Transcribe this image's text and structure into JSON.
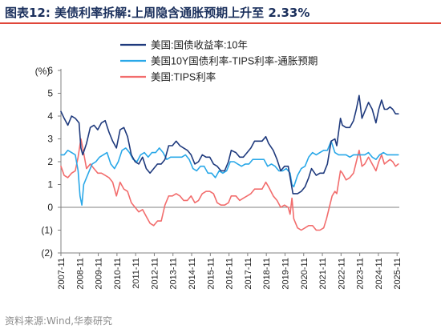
{
  "title": "图表12:   美债利率拆解:上周隐含通胀预期上升至 2.33%",
  "source": "资料来源:Wind,华泰研究",
  "chart_data": {
    "type": "line",
    "ylabel": "(%)",
    "ylim": [
      -2,
      6
    ],
    "yticks": [
      -2,
      -1,
      0,
      1,
      2,
      3,
      4,
      5,
      6
    ],
    "ytick_labels": [
      "(2)",
      "(1)",
      "0",
      "1",
      "2",
      "3",
      "4",
      "5",
      "6"
    ],
    "xlim": [
      2007.83,
      2025.95
    ],
    "xticks": [
      2007.83,
      2008.83,
      2009.83,
      2010.83,
      2011.83,
      2012.83,
      2013.83,
      2014.83,
      2015.83,
      2016.83,
      2017.83,
      2018.83,
      2019.83,
      2020.83,
      2021.83,
      2022.83,
      2023.83,
      2024.83,
      2025.83
    ],
    "xtick_labels": [
      "2007-11",
      "2008-11",
      "2009-11",
      "2010-11",
      "2011-11",
      "2012-11",
      "2013-11",
      "2014-11",
      "2015-11",
      "2016-11",
      "2017-11",
      "2018-11",
      "2019-11",
      "2020-11",
      "2021-11",
      "2022-11",
      "2023-11",
      "2024-11",
      "2025-11"
    ],
    "legend_position": "top",
    "series": [
      {
        "name": "美国:国债收益率:10年",
        "color": "#1f3a7d",
        "points": [
          [
            2007.83,
            4.2
          ],
          [
            2008.0,
            3.9
          ],
          [
            2008.2,
            3.6
          ],
          [
            2008.4,
            4.0
          ],
          [
            2008.6,
            3.9
          ],
          [
            2008.8,
            3.7
          ],
          [
            2008.9,
            2.6
          ],
          [
            2009.0,
            2.3
          ],
          [
            2009.2,
            2.8
          ],
          [
            2009.4,
            3.5
          ],
          [
            2009.6,
            3.6
          ],
          [
            2009.8,
            3.4
          ],
          [
            2010.0,
            3.7
          ],
          [
            2010.2,
            3.8
          ],
          [
            2010.4,
            3.3
          ],
          [
            2010.6,
            2.9
          ],
          [
            2010.8,
            2.6
          ],
          [
            2011.0,
            3.4
          ],
          [
            2011.2,
            3.5
          ],
          [
            2011.4,
            3.1
          ],
          [
            2011.6,
            2.3
          ],
          [
            2011.8,
            2.0
          ],
          [
            2012.0,
            1.9
          ],
          [
            2012.2,
            2.2
          ],
          [
            2012.4,
            1.7
          ],
          [
            2012.6,
            1.5
          ],
          [
            2012.8,
            1.7
          ],
          [
            2013.0,
            1.9
          ],
          [
            2013.2,
            1.9
          ],
          [
            2013.4,
            2.1
          ],
          [
            2013.6,
            2.7
          ],
          [
            2013.8,
            2.7
          ],
          [
            2014.0,
            2.9
          ],
          [
            2014.2,
            2.7
          ],
          [
            2014.4,
            2.6
          ],
          [
            2014.6,
            2.5
          ],
          [
            2014.8,
            2.3
          ],
          [
            2015.0,
            1.9
          ],
          [
            2015.2,
            2.0
          ],
          [
            2015.4,
            2.3
          ],
          [
            2015.6,
            2.2
          ],
          [
            2015.8,
            2.2
          ],
          [
            2016.0,
            1.9
          ],
          [
            2016.2,
            1.8
          ],
          [
            2016.4,
            1.6
          ],
          [
            2016.6,
            1.6
          ],
          [
            2016.8,
            2.0
          ],
          [
            2016.95,
            2.5
          ],
          [
            2017.2,
            2.4
          ],
          [
            2017.4,
            2.2
          ],
          [
            2017.6,
            2.2
          ],
          [
            2017.8,
            2.4
          ],
          [
            2018.0,
            2.6
          ],
          [
            2018.2,
            2.9
          ],
          [
            2018.4,
            2.9
          ],
          [
            2018.6,
            2.9
          ],
          [
            2018.8,
            3.1
          ],
          [
            2018.95,
            2.8
          ],
          [
            2019.2,
            2.5
          ],
          [
            2019.4,
            2.1
          ],
          [
            2019.6,
            1.6
          ],
          [
            2019.8,
            1.8
          ],
          [
            2020.0,
            1.8
          ],
          [
            2020.15,
            1.1
          ],
          [
            2020.25,
            0.6
          ],
          [
            2020.5,
            0.6
          ],
          [
            2020.7,
            0.7
          ],
          [
            2020.9,
            0.9
          ],
          [
            2021.1,
            1.3
          ],
          [
            2021.25,
            1.7
          ],
          [
            2021.5,
            1.4
          ],
          [
            2021.7,
            1.5
          ],
          [
            2021.9,
            1.5
          ],
          [
            2022.1,
            1.9
          ],
          [
            2022.3,
            2.9
          ],
          [
            2022.5,
            3.0
          ],
          [
            2022.6,
            2.7
          ],
          [
            2022.8,
            3.9
          ],
          [
            2022.9,
            3.6
          ],
          [
            2023.1,
            3.5
          ],
          [
            2023.3,
            3.5
          ],
          [
            2023.5,
            3.8
          ],
          [
            2023.65,
            4.3
          ],
          [
            2023.8,
            4.9
          ],
          [
            2023.95,
            3.9
          ],
          [
            2024.1,
            4.2
          ],
          [
            2024.3,
            4.6
          ],
          [
            2024.5,
            4.3
          ],
          [
            2024.7,
            3.7
          ],
          [
            2024.85,
            4.3
          ],
          [
            2025.0,
            4.7
          ],
          [
            2025.15,
            4.3
          ],
          [
            2025.3,
            4.3
          ],
          [
            2025.45,
            4.4
          ],
          [
            2025.6,
            4.3
          ],
          [
            2025.75,
            4.1
          ],
          [
            2025.9,
            4.1
          ]
        ]
      },
      {
        "name": "美国10Y国债利率-TIPS利率-通胀预期",
        "color": "#2aa8e8",
        "points": [
          [
            2007.83,
            2.3
          ],
          [
            2008.0,
            2.3
          ],
          [
            2008.2,
            2.5
          ],
          [
            2008.4,
            2.4
          ],
          [
            2008.6,
            2.3
          ],
          [
            2008.75,
            1.6
          ],
          [
            2008.85,
            0.5
          ],
          [
            2008.95,
            0.1
          ],
          [
            2009.05,
            1.0
          ],
          [
            2009.3,
            1.5
          ],
          [
            2009.5,
            1.9
          ],
          [
            2009.7,
            2.0
          ],
          [
            2009.9,
            2.2
          ],
          [
            2010.1,
            2.3
          ],
          [
            2010.3,
            2.4
          ],
          [
            2010.5,
            1.9
          ],
          [
            2010.7,
            1.7
          ],
          [
            2010.9,
            2.0
          ],
          [
            2011.1,
            2.5
          ],
          [
            2011.3,
            2.6
          ],
          [
            2011.5,
            2.4
          ],
          [
            2011.7,
            2.1
          ],
          [
            2011.9,
            2.0
          ],
          [
            2012.1,
            2.3
          ],
          [
            2012.3,
            2.4
          ],
          [
            2012.5,
            2.2
          ],
          [
            2012.7,
            2.4
          ],
          [
            2012.9,
            2.4
          ],
          [
            2013.1,
            2.6
          ],
          [
            2013.3,
            2.4
          ],
          [
            2013.5,
            2.1
          ],
          [
            2013.7,
            2.2
          ],
          [
            2013.9,
            2.2
          ],
          [
            2014.1,
            2.2
          ],
          [
            2014.3,
            2.2
          ],
          [
            2014.5,
            2.3
          ],
          [
            2014.7,
            2.1
          ],
          [
            2014.9,
            1.7
          ],
          [
            2015.1,
            1.6
          ],
          [
            2015.3,
            1.8
          ],
          [
            2015.5,
            1.8
          ],
          [
            2015.7,
            1.5
          ],
          [
            2015.9,
            1.5
          ],
          [
            2016.1,
            1.3
          ],
          [
            2016.3,
            1.6
          ],
          [
            2016.5,
            1.5
          ],
          [
            2016.7,
            1.6
          ],
          [
            2016.9,
            2.0
          ],
          [
            2017.1,
            2.0
          ],
          [
            2017.3,
            1.9
          ],
          [
            2017.5,
            1.8
          ],
          [
            2017.7,
            1.9
          ],
          [
            2017.9,
            1.9
          ],
          [
            2018.1,
            2.1
          ],
          [
            2018.3,
            2.1
          ],
          [
            2018.5,
            2.1
          ],
          [
            2018.7,
            2.1
          ],
          [
            2018.9,
            1.8
          ],
          [
            2019.1,
            1.9
          ],
          [
            2019.3,
            1.8
          ],
          [
            2019.5,
            1.6
          ],
          [
            2019.7,
            1.6
          ],
          [
            2019.9,
            1.7
          ],
          [
            2020.1,
            1.5
          ],
          [
            2020.2,
            1.0
          ],
          [
            2020.3,
            0.9
          ],
          [
            2020.5,
            1.4
          ],
          [
            2020.7,
            1.7
          ],
          [
            2020.9,
            1.8
          ],
          [
            2021.1,
            2.2
          ],
          [
            2021.3,
            2.4
          ],
          [
            2021.5,
            2.3
          ],
          [
            2021.7,
            2.4
          ],
          [
            2021.9,
            2.5
          ],
          [
            2022.1,
            2.5
          ],
          [
            2022.3,
            2.9
          ],
          [
            2022.5,
            2.4
          ],
          [
            2022.7,
            2.3
          ],
          [
            2022.9,
            2.3
          ],
          [
            2023.1,
            2.3
          ],
          [
            2023.3,
            2.2
          ],
          [
            2023.5,
            2.3
          ],
          [
            2023.7,
            2.3
          ],
          [
            2023.9,
            2.3
          ],
          [
            2024.1,
            2.3
          ],
          [
            2024.3,
            2.4
          ],
          [
            2024.5,
            2.2
          ],
          [
            2024.7,
            2.1
          ],
          [
            2024.9,
            2.3
          ],
          [
            2025.1,
            2.4
          ],
          [
            2025.3,
            2.3
          ],
          [
            2025.5,
            2.3
          ],
          [
            2025.7,
            2.3
          ],
          [
            2025.9,
            2.3
          ]
        ]
      },
      {
        "name": "美国:TIPS利率",
        "color": "#f26d6d",
        "points": [
          [
            2007.83,
            1.8
          ],
          [
            2008.0,
            1.4
          ],
          [
            2008.2,
            1.3
          ],
          [
            2008.4,
            1.5
          ],
          [
            2008.6,
            1.6
          ],
          [
            2008.75,
            2.2
          ],
          [
            2008.9,
            3.0
          ],
          [
            2009.0,
            2.6
          ],
          [
            2009.2,
            1.7
          ],
          [
            2009.4,
            1.9
          ],
          [
            2009.6,
            1.7
          ],
          [
            2009.8,
            1.5
          ],
          [
            2010.0,
            1.5
          ],
          [
            2010.2,
            1.4
          ],
          [
            2010.4,
            1.3
          ],
          [
            2010.6,
            1.1
          ],
          [
            2010.8,
            0.5
          ],
          [
            2011.0,
            1.1
          ],
          [
            2011.2,
            0.8
          ],
          [
            2011.4,
            0.7
          ],
          [
            2011.6,
            0.2
          ],
          [
            2011.8,
            0.0
          ],
          [
            2012.0,
            -0.2
          ],
          [
            2012.2,
            -0.1
          ],
          [
            2012.4,
            -0.4
          ],
          [
            2012.6,
            -0.7
          ],
          [
            2012.8,
            -0.8
          ],
          [
            2013.0,
            -0.6
          ],
          [
            2013.2,
            -0.6
          ],
          [
            2013.4,
            0.1
          ],
          [
            2013.6,
            0.5
          ],
          [
            2013.8,
            0.5
          ],
          [
            2014.0,
            0.6
          ],
          [
            2014.2,
            0.5
          ],
          [
            2014.4,
            0.3
          ],
          [
            2014.6,
            0.3
          ],
          [
            2014.8,
            0.5
          ],
          [
            2015.0,
            0.2
          ],
          [
            2015.2,
            0.3
          ],
          [
            2015.4,
            0.6
          ],
          [
            2015.6,
            0.7
          ],
          [
            2015.8,
            0.7
          ],
          [
            2016.0,
            0.6
          ],
          [
            2016.2,
            0.2
          ],
          [
            2016.4,
            0.1
          ],
          [
            2016.6,
            0.1
          ],
          [
            2016.8,
            0.2
          ],
          [
            2016.95,
            0.5
          ],
          [
            2017.2,
            0.5
          ],
          [
            2017.4,
            0.3
          ],
          [
            2017.6,
            0.4
          ],
          [
            2017.8,
            0.5
          ],
          [
            2018.0,
            0.6
          ],
          [
            2018.2,
            0.8
          ],
          [
            2018.4,
            0.8
          ],
          [
            2018.6,
            0.8
          ],
          [
            2018.8,
            1.1
          ],
          [
            2018.95,
            0.9
          ],
          [
            2019.2,
            0.5
          ],
          [
            2019.4,
            0.3
          ],
          [
            2019.6,
            0.0
          ],
          [
            2019.8,
            0.1
          ],
          [
            2020.0,
            0.0
          ],
          [
            2020.1,
            -0.3
          ],
          [
            2020.2,
            0.4
          ],
          [
            2020.3,
            -0.5
          ],
          [
            2020.5,
            -0.9
          ],
          [
            2020.7,
            -1.0
          ],
          [
            2020.9,
            -0.9
          ],
          [
            2021.1,
            -0.8
          ],
          [
            2021.3,
            -0.8
          ],
          [
            2021.5,
            -1.0
          ],
          [
            2021.7,
            -1.0
          ],
          [
            2021.9,
            -0.9
          ],
          [
            2022.05,
            -0.5
          ],
          [
            2022.2,
            0.0
          ],
          [
            2022.35,
            0.5
          ],
          [
            2022.5,
            0.7
          ],
          [
            2022.6,
            0.6
          ],
          [
            2022.8,
            1.6
          ],
          [
            2022.9,
            1.5
          ],
          [
            2023.1,
            1.2
          ],
          [
            2023.3,
            1.3
          ],
          [
            2023.5,
            1.5
          ],
          [
            2023.65,
            2.0
          ],
          [
            2023.8,
            2.5
          ],
          [
            2023.95,
            1.8
          ],
          [
            2024.1,
            1.9
          ],
          [
            2024.3,
            2.2
          ],
          [
            2024.5,
            1.9
          ],
          [
            2024.7,
            1.6
          ],
          [
            2024.85,
            2.0
          ],
          [
            2025.0,
            2.3
          ],
          [
            2025.15,
            1.9
          ],
          [
            2025.3,
            2.0
          ],
          [
            2025.45,
            2.1
          ],
          [
            2025.6,
            2.0
          ],
          [
            2025.75,
            1.8
          ],
          [
            2025.9,
            1.9
          ]
        ]
      }
    ]
  }
}
